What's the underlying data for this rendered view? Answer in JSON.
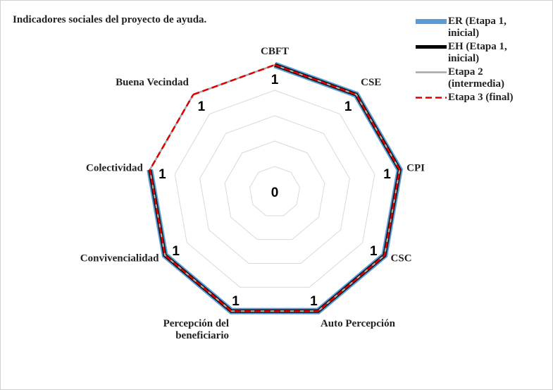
{
  "chart_data": {
    "type": "radar",
    "title": "Indicadores sociales del proyecto de ayuda.",
    "categories": [
      "CBFT",
      "CSE",
      "CPI",
      "CSC",
      "Auto Percepción",
      "Percepción del beneficiario",
      "Convivencialidad",
      "Colectividad",
      "Buena Vecindad"
    ],
    "series": [
      {
        "name": "ER (Etapa 1, inicial)",
        "color": "#5b9bd5",
        "width": 9,
        "values": [
          1,
          1,
          1,
          1,
          1,
          1,
          1,
          1,
          null
        ]
      },
      {
        "name": "EH (Etapa 1, inicial)",
        "color": "#000000",
        "width": 5,
        "values": [
          1,
          1,
          1,
          1,
          1,
          1,
          1,
          1,
          null
        ]
      },
      {
        "name": "Etapa 2 (intermedia)",
        "color": "#a6a6a6",
        "width": 2.5,
        "values": [
          1,
          1,
          1,
          1,
          1,
          1,
          1,
          1,
          1
        ]
      },
      {
        "name": "Etapa 3 (final)",
        "color": "#e00000",
        "width": 2.5,
        "dashed": true,
        "values": [
          1,
          1,
          1,
          1,
          1,
          1,
          1,
          1,
          1
        ]
      }
    ],
    "rlim": [
      0,
      1
    ],
    "rticks": [
      0,
      0.2,
      0.4,
      0.6,
      0.8,
      1
    ],
    "grid": true,
    "legend": "top-right"
  }
}
